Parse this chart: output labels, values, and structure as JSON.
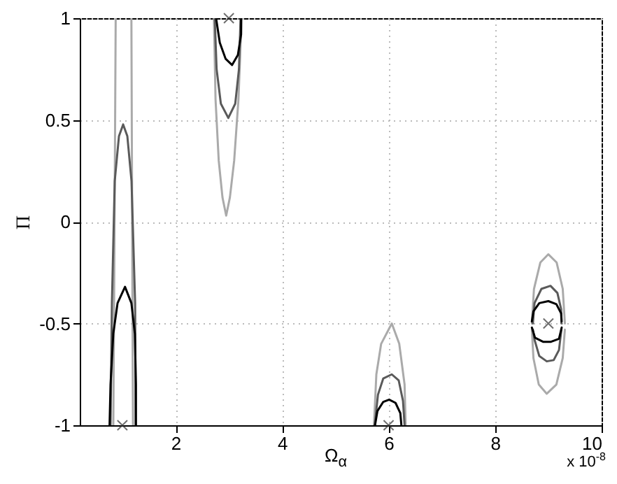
{
  "chart_data": {
    "type": "line",
    "xlabel": "Ω$_{α}$",
    "ylabel": "Π",
    "annotations": [
      "x 10$^{-8}$"
    ],
    "xlim": [
      0.2,
      10
    ],
    "xticks": [
      2,
      4,
      6,
      8,
      10
    ],
    "ylim": [
      -1,
      1
    ],
    "yticks": [
      {
        "value": -1,
        "label": "-1"
      },
      {
        "value": -0.5,
        "label": "-0.5"
      },
      {
        "value": 0,
        "label": "0"
      },
      {
        "value": 0.5,
        "label": "0.5"
      },
      {
        "value": 1,
        "label": "1"
      }
    ],
    "grid": true,
    "line_style": "solid",
    "series": [
      {
        "color": "#aaaaaa",
        "x": [
          0.875,
          0.86,
          0.845,
          0.83
        ],
        "values": [
          1,
          0.3,
          -0.4,
          -1
        ]
      },
      {
        "color": "#aaaaaa",
        "x": [
          1.17,
          1.18,
          1.19,
          1.2
        ],
        "values": [
          1,
          0.3,
          -0.4,
          -1
        ]
      },
      {
        "color": "#5a5a5a",
        "x": [
          0.778,
          0.804,
          0.857,
          0.936,
          1.015,
          1.094,
          1.172,
          1.24,
          1.25
        ],
        "values": [
          -1,
          -0.4,
          0.2,
          0.42,
          0.478,
          0.42,
          0.2,
          -0.4,
          -1
        ]
      },
      {
        "color": "#000000",
        "x": [
          0.76,
          0.778,
          0.83,
          0.91,
          1.05,
          1.17,
          1.235,
          1.255,
          1.255
        ],
        "values": [
          -1,
          -0.8,
          -0.55,
          -0.4,
          -0.32,
          -0.4,
          -0.55,
          -0.8,
          -1
        ]
      },
      {
        "color": "#aaaaaa",
        "x": [
          2.72,
          2.75,
          2.81,
          2.88,
          2.95,
          3.02,
          3.1,
          3.18,
          3.24
        ],
        "values": [
          1,
          0.6,
          0.3,
          0.12,
          0.03,
          0.12,
          0.3,
          0.6,
          1
        ]
      },
      {
        "color": "#5a5a5a",
        "x": [
          2.735,
          2.77,
          2.85,
          2.99,
          3.12,
          3.19,
          3.22
        ],
        "values": [
          1,
          0.75,
          0.58,
          0.51,
          0.58,
          0.75,
          1
        ]
      },
      {
        "color": "#000000",
        "x": [
          2.76,
          2.83,
          2.94,
          3.06,
          3.17,
          3.23,
          3.23
        ],
        "values": [
          1,
          0.88,
          0.8,
          0.77,
          0.82,
          0.92,
          1
        ]
      },
      {
        "color": "#aaaaaa",
        "x": [
          5.725,
          5.77,
          5.86,
          6.06,
          6.2,
          6.3,
          6.32
        ],
        "values": [
          -1,
          -0.75,
          -0.6,
          -0.5,
          -0.6,
          -0.8,
          -1
        ]
      },
      {
        "color": "#5a5a5a",
        "x": [
          5.74,
          5.8,
          5.9,
          6.06,
          6.19,
          6.27,
          6.3
        ],
        "values": [
          -1,
          -0.85,
          -0.77,
          -0.75,
          -0.78,
          -0.88,
          -1
        ]
      },
      {
        "color": "#000000",
        "x": [
          5.745,
          5.79,
          5.9,
          6.01,
          6.13,
          6.22,
          6.24
        ],
        "values": [
          -1,
          -0.93,
          -0.885,
          -0.874,
          -0.89,
          -0.94,
          -1
        ]
      },
      {
        "color": "#aaaaaa",
        "x": [
          8.69,
          8.73,
          8.85,
          9.0,
          9.155,
          9.27,
          9.31
        ],
        "values": [
          -0.5,
          -0.33,
          -0.2,
          -0.16,
          -0.2,
          -0.33,
          -0.5
        ]
      },
      {
        "color": "#aaaaaa",
        "x": [
          8.69,
          8.72,
          8.82,
          8.97,
          9.15,
          9.27,
          9.31
        ],
        "values": [
          -0.53,
          -0.67,
          -0.8,
          -0.845,
          -0.8,
          -0.67,
          -0.53
        ]
      },
      {
        "color": "#5a5a5a",
        "x": [
          8.71,
          8.74,
          8.87,
          9.04,
          9.17,
          9.24,
          9.245
        ],
        "values": [
          -0.5,
          -0.4,
          -0.33,
          -0.315,
          -0.35,
          -0.43,
          -0.5
        ]
      },
      {
        "color": "#5a5a5a",
        "x": [
          8.71,
          8.74,
          8.83,
          8.97,
          9.1,
          9.2,
          9.245
        ],
        "values": [
          -0.53,
          -0.58,
          -0.66,
          -0.686,
          -0.68,
          -0.63,
          -0.53
        ]
      },
      {
        "color": "#000000",
        "x": [
          8.69,
          8.72,
          8.83,
          9.0,
          9.15,
          9.24,
          9.25
        ],
        "values": [
          -0.49,
          -0.44,
          -0.4,
          -0.39,
          -0.405,
          -0.45,
          -0.49
        ]
      },
      {
        "color": "#000000",
        "x": [
          8.69,
          8.75,
          8.9,
          9.05,
          9.2,
          9.25
        ],
        "values": [
          -0.52,
          -0.57,
          -0.59,
          -0.59,
          -0.575,
          -0.52
        ]
      },
      {
        "type": "scatter",
        "marker": "cross",
        "color": "#333333",
        "x": [
          1,
          3,
          6,
          9
        ],
        "values": [
          -1,
          1,
          -1,
          -0.5
        ]
      }
    ]
  }
}
